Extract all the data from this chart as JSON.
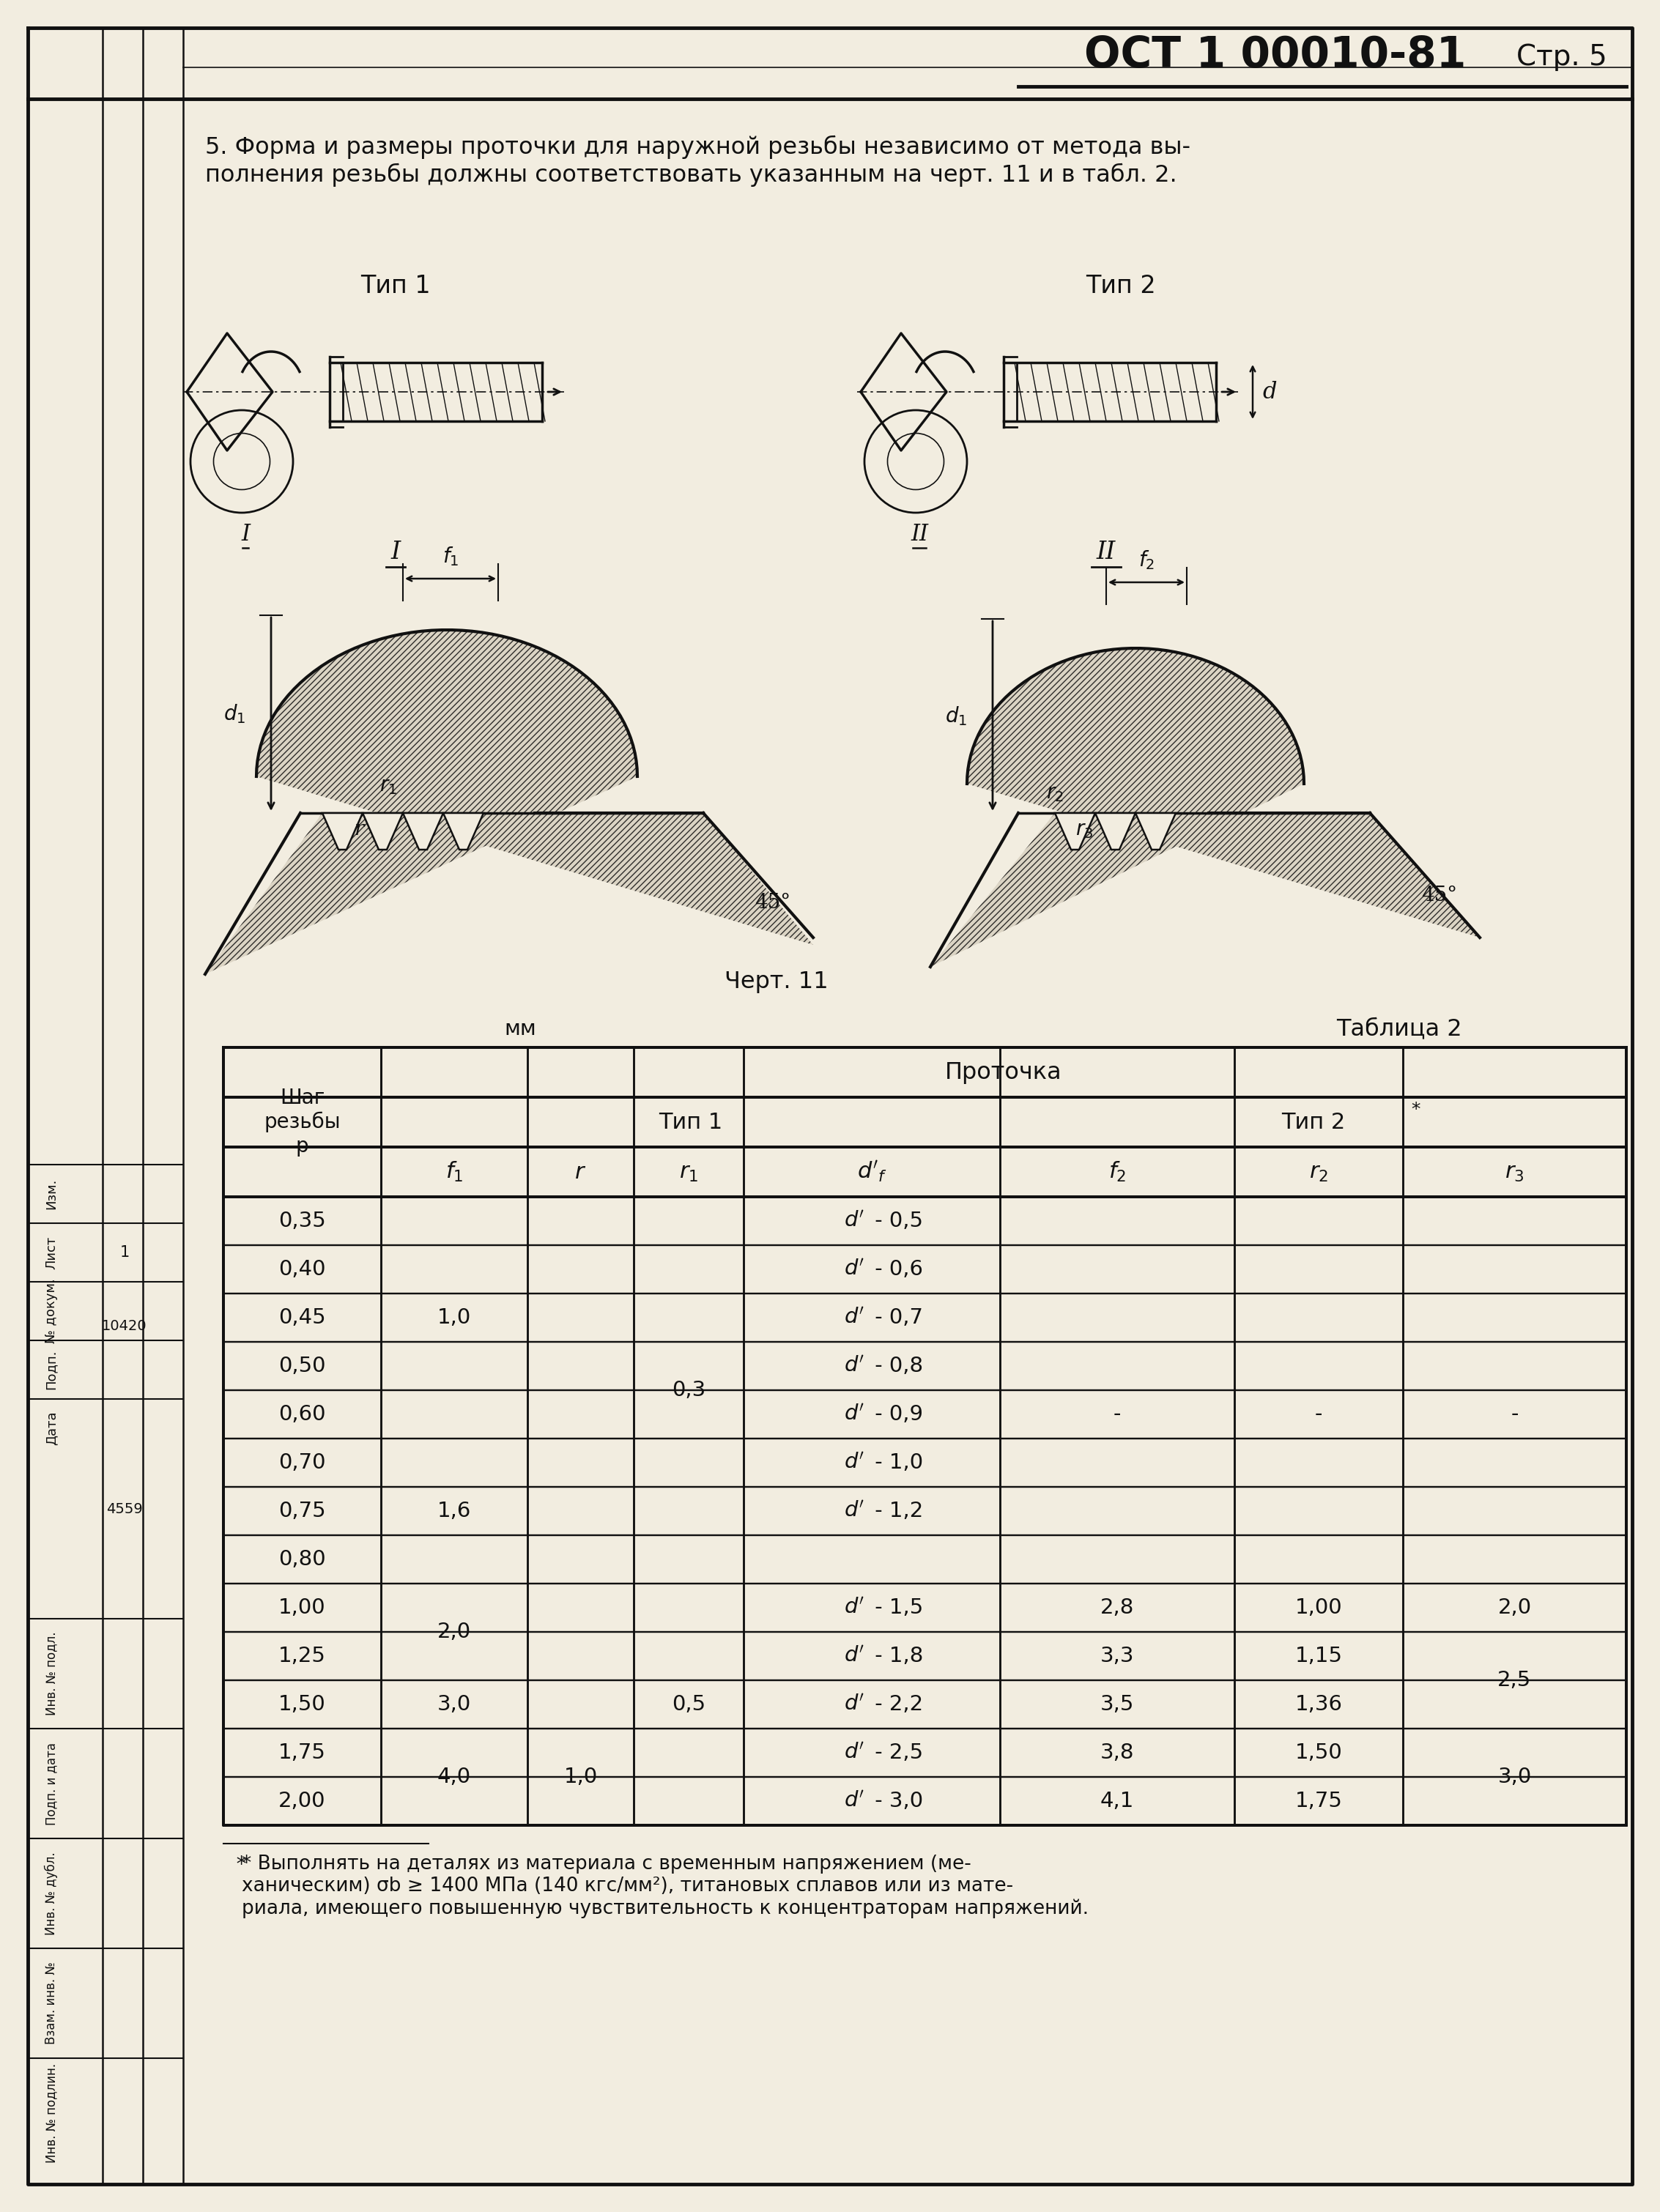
{
  "bg_color": "#f2ede0",
  "text_color": "#111111",
  "title_bold": "ОСТ 1 00010-81",
  "page_label": "Стр. 5",
  "paragraph": "5. Форма и размеры проточки для наружной резьбы независимо от метода вы-\nполнения резьбы должны соответствовать указанным на черт. 11 и в табл. 2.",
  "type1_label": "Тип 1",
  "type2_label": "Тип 2",
  "chert_label": "Черт. 11",
  "mm_label": "мм",
  "table_label": "Таблица 2",
  "protochka_label": "Проточка",
  "tip1_label": "Тип 1",
  "tip2_label": "Тип 2",
  "col_header_p": "Шаг\nрезьбы\np",
  "col_headers": [
    "f₁",
    "r",
    "r₁",
    "d’f",
    "f₂",
    "r₂",
    "r₃"
  ],
  "footnote": "* Выполнять на деталях из материала с временным напряжением (ме-\nханическим) σb ≥ 1400 МПа (140 кгс/мм²), титановых сплавов или из мате-\nриала, имеющего повышенную чувствительность к концентраторам напряжений.",
  "p_vals": [
    "0,35",
    "0,40",
    "0,45",
    "0,50",
    "0,60",
    "0,70",
    "0,75",
    "0,80",
    "1,00",
    "1,25",
    "1,50",
    "1,75",
    "2,00"
  ],
  "f1_merged": [
    [
      0,
      4,
      "1,0"
    ],
    [
      5,
      7,
      "1,6"
    ],
    [
      8,
      9,
      "2,0"
    ],
    [
      10,
      10,
      "3,0"
    ],
    [
      11,
      12,
      "4,0"
    ]
  ],
  "r_merged": [
    [
      11,
      12,
      "1,0"
    ]
  ],
  "r1_merged": [
    [
      0,
      7,
      "0,3"
    ],
    [
      8,
      12,
      "0,5"
    ]
  ],
  "df_vals": [
    "d - 0,5",
    "d - 0,6",
    "d - 0,7",
    "d - 0,8",
    "d - 0,9",
    "d - 1,0",
    "d - 1,2",
    "",
    "d - 1,5",
    "d - 1,8",
    "d - 2,2",
    "d - 2,5",
    "d - 3,0"
  ],
  "f2_vals": [
    "",
    "",
    "",
    "",
    "-",
    "",
    "",
    "",
    "2,8",
    "3,3",
    "3,5",
    "3,8",
    "4,1"
  ],
  "r2_vals": [
    "",
    "",
    "",
    "",
    "-",
    "",
    "",
    "",
    "1,00",
    "1,15",
    "1,36",
    "1,50",
    "1,75"
  ],
  "r3_merged": [
    [
      -1,
      -1,
      "-"
    ],
    [
      8,
      8,
      "2,0"
    ],
    [
      9,
      10,
      "2,5"
    ],
    [
      11,
      12,
      "3,0"
    ]
  ],
  "r3_dash_rows": [
    4
  ],
  "sidebar_labels_top": [
    "Изм.",
    "Лист",
    "№ докум.",
    "Подп.",
    "Дата"
  ],
  "sidebar_vals": [
    "1",
    "10420",
    "4559"
  ],
  "sidebar_labels_bot": [
    "Инв. № подл.",
    "Подп. и дата",
    "Инв. № дубл.",
    "Взам. инв. №",
    "Инв. № подлин."
  ]
}
